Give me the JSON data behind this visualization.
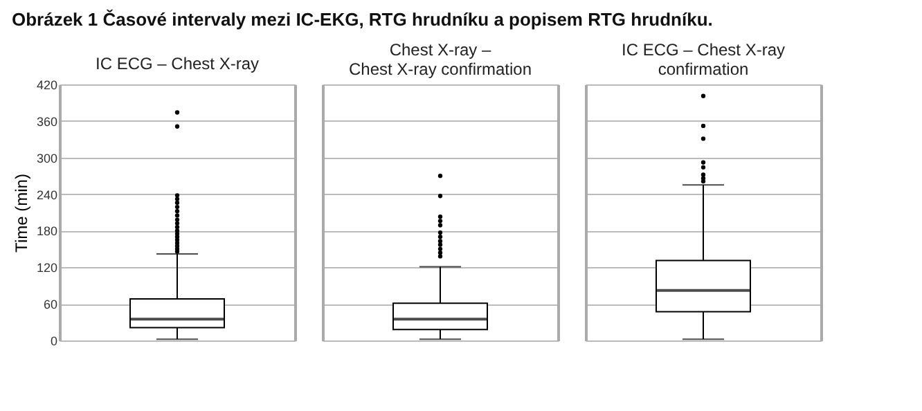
{
  "chart_data": {
    "type": "box",
    "ylabel": "Time (min)",
    "annotations": [
      "Obrázek 1 Časové intervaly mezi IC-EKG, RTG hrudníku a popisem RTG hrudníku."
    ],
    "categories": [
      "IC ECG – Chest X-ray",
      "Chest X-ray –\nChest X-ray confirmation",
      "IC ECG – Chest X-ray\nconfirmation"
    ],
    "ylim": [
      0,
      420
    ],
    "yticks": [
      0,
      60,
      120,
      180,
      240,
      300,
      360,
      420
    ],
    "grid": "y",
    "boxes": [
      {
        "low": 2,
        "q1": 21,
        "median": 35,
        "q3": 68,
        "high": 142,
        "outliers": [
          374,
          351,
          238,
          232,
          226,
          219,
          212,
          205,
          198,
          192,
          186,
          180,
          175,
          170,
          165,
          160,
          155,
          150,
          146
        ]
      },
      {
        "low": 2,
        "q1": 18,
        "median": 35,
        "q3": 61,
        "high": 121,
        "outliers": [
          270,
          237,
          203,
          196,
          189,
          177,
          170,
          163,
          157,
          150,
          144,
          138
        ]
      },
      {
        "low": 2,
        "q1": 47,
        "median": 82,
        "q3": 131,
        "high": 255,
        "outliers": [
          401,
          352,
          331,
          292,
          284,
          272,
          266,
          261
        ]
      }
    ]
  }
}
